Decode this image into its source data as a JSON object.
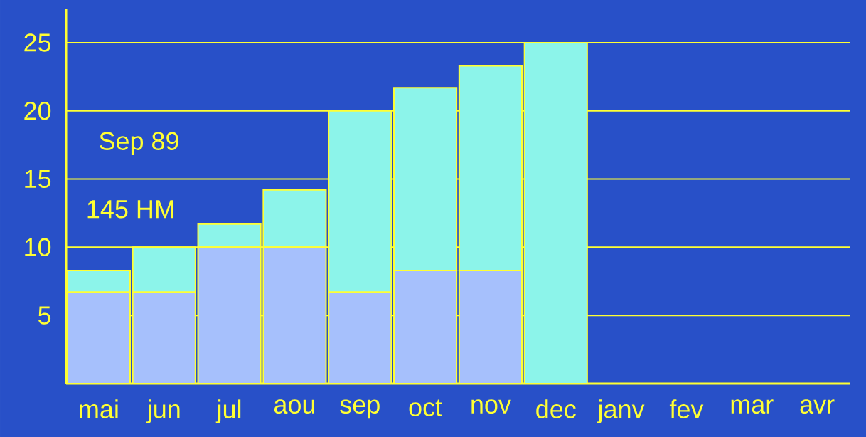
{
  "chart_data": {
    "type": "bar",
    "stacked": true,
    "categories": [
      "mai",
      "jun",
      "jul",
      "aou",
      "sep",
      "oct",
      "nov",
      "dec",
      "janv",
      "fev",
      "mar",
      "avr"
    ],
    "series": [
      {
        "color": "#a6c0fc",
        "values": [
          6.7,
          6.7,
          10,
          10,
          6.7,
          8.3,
          8.3,
          0,
          null,
          null,
          null,
          null
        ]
      },
      {
        "color": "#8cf4ea",
        "values": [
          1.6,
          3.3,
          1.7,
          4.2,
          13.3,
          13.4,
          15,
          25,
          null,
          null,
          null,
          null
        ]
      }
    ],
    "ylim": [
      0,
      27.5
    ],
    "yticks": [
      5,
      10,
      15,
      20,
      25
    ],
    "grid": "y",
    "annotations": [
      "Sep 89",
      "145 HM"
    ]
  }
}
